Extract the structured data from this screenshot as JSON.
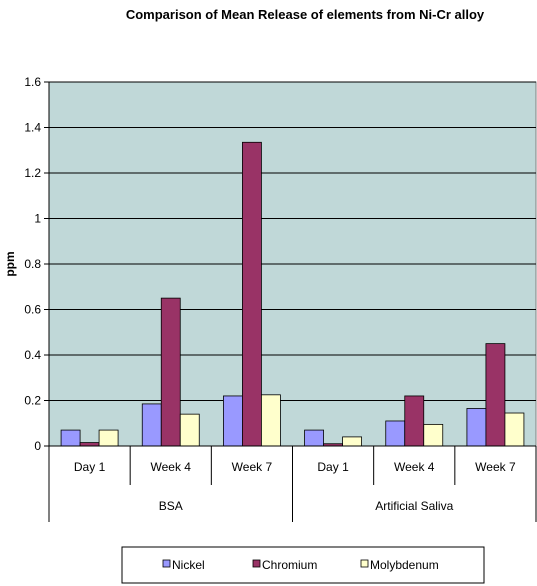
{
  "chart_data": {
    "type": "bar",
    "title": "Comparison of Mean Release of elements from Ni-Cr alloy",
    "xlabel": "",
    "ylabel": "ppm",
    "ylim": [
      0,
      1.6
    ],
    "yticks": [
      "0",
      "0.2",
      "0.4",
      "0.6",
      "0.8",
      "1",
      "1.2",
      "1.4",
      "1.6"
    ],
    "grid": true,
    "legend_position": "bottom",
    "groups": [
      {
        "label": "BSA",
        "categories": [
          "Day 1",
          "Week 4",
          "Week 7"
        ]
      },
      {
        "label": "Artificial Saliva",
        "categories": [
          "Day 1",
          "Week 4",
          "Week 7"
        ]
      }
    ],
    "categories": [
      "Day 1",
      "Week 4",
      "Week 7",
      "Day 1",
      "Week 4",
      "Week 7"
    ],
    "series": [
      {
        "name": "Nickel",
        "color": "#9999ff",
        "values": [
          0.07,
          0.185,
          0.22,
          0.07,
          0.11,
          0.165
        ]
      },
      {
        "name": "Chromium",
        "color": "#993366",
        "values": [
          0.015,
          0.65,
          1.335,
          0.01,
          0.22,
          0.45
        ]
      },
      {
        "name": "Molybdenum",
        "color": "#ffffcc",
        "values": [
          0.07,
          0.14,
          0.225,
          0.04,
          0.095,
          0.145
        ]
      }
    ]
  }
}
